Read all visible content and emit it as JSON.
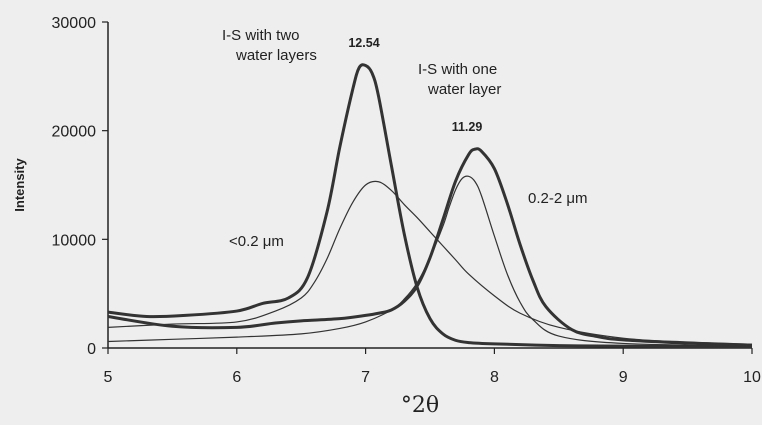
{
  "chart_data": {
    "type": "line",
    "xlabel": "°2θ",
    "ylabel": "Intensity",
    "xlim": [
      5,
      10
    ],
    "ylim": [
      0,
      30000
    ],
    "xticks": [
      "5",
      "6",
      "7",
      "8",
      "9",
      "10"
    ],
    "yticks": [
      "0",
      "10000",
      "20000",
      "30000"
    ],
    "grid": false,
    "series": [
      {
        "style": "thick",
        "x": [
          5,
          5.3,
          5.6,
          6.0,
          6.2,
          6.4,
          6.55,
          6.7,
          6.8,
          6.9,
          6.95,
          7.0,
          7.05,
          7.1,
          7.2,
          7.3,
          7.4,
          7.5,
          7.6,
          7.7,
          7.8,
          8.0,
          8.5,
          9.0,
          10.0
        ],
        "y": [
          3300,
          2900,
          3000,
          3400,
          4100,
          4600,
          6500,
          12500,
          18500,
          23800,
          25800,
          26000,
          25300,
          23200,
          16800,
          10500,
          5600,
          2700,
          1300,
          700,
          500,
          380,
          220,
          170,
          110
        ]
      },
      {
        "style": "thick",
        "x": [
          5,
          5.5,
          6.0,
          6.3,
          6.5,
          6.8,
          7.0,
          7.1,
          7.2,
          7.3,
          7.4,
          7.5,
          7.6,
          7.7,
          7.8,
          7.85,
          7.9,
          8.0,
          8.1,
          8.2,
          8.3,
          8.4,
          8.6,
          8.8,
          9.0,
          9.5,
          10.0
        ],
        "y": [
          2900,
          2000,
          1900,
          2300,
          2500,
          2700,
          3000,
          3200,
          3500,
          4300,
          5700,
          8300,
          11800,
          15400,
          17800,
          18300,
          18100,
          16500,
          13300,
          9500,
          6200,
          3800,
          1700,
          1050,
          750,
          450,
          260
        ]
      },
      {
        "style": "thin",
        "x": [
          5,
          5.5,
          6.0,
          6.3,
          6.5,
          6.6,
          6.7,
          6.8,
          6.9,
          7.0,
          7.1,
          7.2,
          7.3,
          7.4,
          7.5,
          7.6,
          7.7,
          7.8,
          8.0,
          8.2,
          8.5,
          9.0,
          9.5,
          10.0
        ],
        "y": [
          1900,
          2200,
          2400,
          3400,
          4600,
          6000,
          8200,
          11000,
          13400,
          15000,
          15300,
          14500,
          13200,
          12000,
          10700,
          9400,
          8100,
          6800,
          4800,
          3200,
          1900,
          900,
          550,
          350
        ]
      },
      {
        "style": "thin",
        "x": [
          5,
          5.5,
          6.0,
          6.5,
          6.8,
          7.0,
          7.2,
          7.3,
          7.4,
          7.5,
          7.6,
          7.65,
          7.7,
          7.75,
          7.8,
          7.85,
          7.9,
          8.0,
          8.1,
          8.2,
          8.3,
          8.5,
          9.0,
          10.0
        ],
        "y": [
          600,
          800,
          1000,
          1300,
          1800,
          2400,
          3500,
          4500,
          6000,
          8300,
          11200,
          13000,
          14600,
          15600,
          15800,
          15300,
          14000,
          10300,
          6800,
          4200,
          2600,
          1100,
          420,
          180
        ]
      }
    ],
    "annotations": [
      {
        "text": "12.54",
        "kind": "peak",
        "x": 7.0,
        "y": 26000
      },
      {
        "text": "11.29",
        "kind": "peak",
        "x": 7.85,
        "y": 18300
      },
      {
        "text": "I-S with two",
        "kind": "note"
      },
      {
        "text": "water layers",
        "kind": "note"
      },
      {
        "text": "I-S with one",
        "kind": "note"
      },
      {
        "text": "water layer",
        "kind": "note"
      },
      {
        "text": "<0.2 μm",
        "kind": "note"
      },
      {
        "text": "0.2-2 μm",
        "kind": "note"
      }
    ]
  }
}
